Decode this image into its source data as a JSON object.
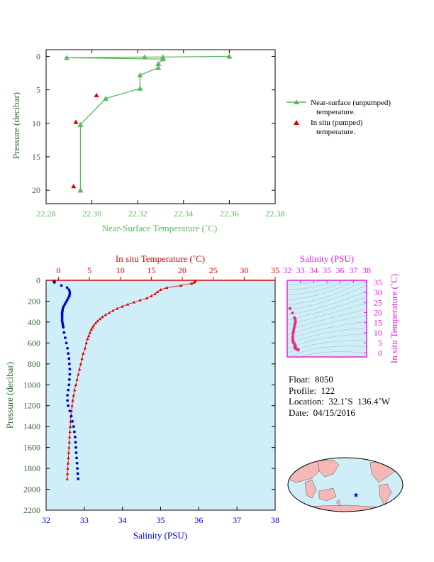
{
  "colors": {
    "green": "#5cb85c",
    "red": "#e00000",
    "blue": "#0000cc",
    "magenta": "#e020e0",
    "plot_bg": "#d0eef8",
    "land": "#f4b8b8",
    "ocean": "#d0eef8"
  },
  "chart_data": [
    {
      "type": "line",
      "title": "",
      "xlabel": "Near-Surface Temperature (˚C)",
      "ylabel": "Pressure (decibar)",
      "xlim": [
        22.28,
        22.38
      ],
      "ylim": [
        22,
        -1
      ],
      "x_ticks": [
        "22.28",
        "22.30",
        "22.32",
        "22.34",
        "22.36",
        "22.38"
      ],
      "y_ticks": [
        "0",
        "5",
        "10",
        "15",
        "20"
      ],
      "legend": {
        "position": "right",
        "entries": [
          "Near-surface (unpumped)",
          "temperature.",
          "In situ (pumped)",
          "temperature."
        ]
      },
      "series": [
        {
          "name": "Near-surface (unpumped) temperature.",
          "style": "line-triangle",
          "color": "#5cb85c",
          "x": [
            22.36,
            22.331,
            22.323,
            22.289,
            22.331,
            22.329,
            22.329,
            22.321,
            22.321,
            22.306,
            22.295,
            22.295
          ],
          "y": [
            0.0,
            0.1,
            0.1,
            0.2,
            0.4,
            1.1,
            1.7,
            2.8,
            4.8,
            6.3,
            10.2,
            20.0
          ]
        },
        {
          "name": "In situ (pumped) temperature.",
          "style": "triangle",
          "color": "#e00000",
          "x": [
            22.302,
            22.293,
            22.292
          ],
          "y": [
            5.8,
            9.8,
            19.4
          ]
        }
      ]
    },
    {
      "type": "line",
      "title": "",
      "ylabel": "Pressure (decibar)",
      "top_axis_label": "In situ Temperature (˚C)",
      "bottom_axis_label": "Salinity (PSU)",
      "temp_lim": [
        -2,
        35
      ],
      "sal_lim": [
        32,
        38
      ],
      "ylim": [
        2200,
        0
      ],
      "temp_ticks": [
        "0",
        "5",
        "10",
        "15",
        "20",
        "25",
        "30",
        "35"
      ],
      "sal_ticks": [
        "32",
        "33",
        "34",
        "35",
        "36",
        "37",
        "38"
      ],
      "y_ticks": [
        "0",
        "200",
        "400",
        "600",
        "800",
        "1000",
        "1200",
        "1400",
        "1600",
        "1800",
        "2000",
        "2200"
      ],
      "temperature": {
        "p": [
          5,
          10,
          20,
          30,
          50,
          70,
          90,
          110,
          130,
          150,
          170,
          190,
          210,
          230,
          250,
          270,
          290,
          310,
          330,
          350,
          370,
          390,
          410,
          430,
          450,
          470,
          500,
          530,
          560,
          600,
          650,
          700,
          750,
          800,
          850,
          900,
          950,
          1000,
          1050,
          1100,
          1150,
          1200,
          1250,
          1300,
          1350,
          1400,
          1450,
          1500,
          1550,
          1600,
          1650,
          1700,
          1750,
          1800,
          1850,
          1900
        ],
        "t": [
          22.1,
          22.0,
          21.9,
          21.5,
          19.8,
          17.5,
          16.5,
          16.0,
          15.6,
          15.0,
          14.3,
          13.2,
          12.2,
          11.2,
          10.3,
          9.5,
          8.8,
          8.2,
          7.6,
          7.1,
          6.7,
          6.3,
          6.0,
          5.7,
          5.5,
          5.3,
          5.1,
          4.9,
          4.7,
          4.5,
          4.3,
          4.0,
          3.8,
          3.6,
          3.4,
          3.2,
          3.0,
          2.8,
          2.6,
          2.45,
          2.3,
          2.2,
          2.1,
          2.0,
          1.95,
          1.9,
          1.85,
          1.8,
          1.75,
          1.7,
          1.65,
          1.6,
          1.55,
          1.5,
          1.45,
          1.4
        ]
      },
      "salinity": {
        "p": [
          5,
          10,
          20,
          50,
          70,
          90,
          110,
          130,
          150,
          170,
          190,
          210,
          230,
          250,
          270,
          290,
          310,
          330,
          350,
          370,
          390,
          410,
          430,
          450,
          500,
          550,
          600,
          650,
          700,
          750,
          800,
          850,
          900,
          950,
          1000,
          1050,
          1100,
          1150,
          1200,
          1250,
          1300,
          1350,
          1400,
          1450,
          1500,
          1550,
          1600,
          1650,
          1700,
          1750,
          1800,
          1850,
          1900
        ],
        "s": [
          32.22,
          32.2,
          32.22,
          32.4,
          32.55,
          32.6,
          32.62,
          32.62,
          32.61,
          32.58,
          32.55,
          32.52,
          32.49,
          32.46,
          32.44,
          32.43,
          32.42,
          32.42,
          32.42,
          32.42,
          32.42,
          32.43,
          32.44,
          32.45,
          32.47,
          32.5,
          32.53,
          32.56,
          32.58,
          32.6,
          32.61,
          32.62,
          32.62,
          32.61,
          32.6,
          32.58,
          32.56,
          32.56,
          32.58,
          32.62,
          32.66,
          32.69,
          32.72,
          32.74,
          32.76,
          32.77,
          32.78,
          32.79,
          32.8,
          32.81,
          32.82,
          32.83,
          32.84
        ]
      }
    },
    {
      "type": "scatter",
      "title": "",
      "top_axis_label": "Salinity (PSU)",
      "right_axis_label": "In situ Temperature (˚C)",
      "x_ticks": [
        "32",
        "33",
        "34",
        "35",
        "36",
        "37",
        "38"
      ],
      "y_ticks": [
        "0",
        "5",
        "10",
        "15",
        "20",
        "25",
        "30",
        "35"
      ],
      "xlim": [
        32,
        38
      ],
      "ylim": [
        -2,
        36
      ],
      "x": [
        32.22,
        32.2,
        32.4,
        32.55,
        32.6,
        32.62,
        32.61,
        32.58,
        32.55,
        32.52,
        32.49,
        32.46,
        32.44,
        32.42,
        32.42,
        32.42,
        32.43,
        32.45,
        32.47,
        32.5,
        32.53,
        32.56,
        32.58,
        32.6,
        32.62,
        32.62,
        32.61,
        32.6,
        32.58,
        32.56,
        32.58,
        32.62,
        32.66,
        32.7,
        32.74,
        32.77,
        32.79,
        32.81,
        32.83,
        32.84
      ],
      "y": [
        22.1,
        22.0,
        19.8,
        17.5,
        16.5,
        16.0,
        15.0,
        14.3,
        13.2,
        12.2,
        11.2,
        10.3,
        9.5,
        8.2,
        7.1,
        6.3,
        6.0,
        5.5,
        5.1,
        4.9,
        4.7,
        4.3,
        4.0,
        3.8,
        3.6,
        3.4,
        3.2,
        3.0,
        2.8,
        2.6,
        2.45,
        2.3,
        2.2,
        2.1,
        2.0,
        1.9,
        1.8,
        1.7,
        1.55,
        1.4
      ]
    }
  ],
  "info": {
    "float": "Float:  8050",
    "profile": "Profile:  122",
    "location": "Location:  32.1˚S  136.4˚W",
    "date": "Date:  04/15/2016"
  },
  "map": {
    "marker": "star",
    "lon": -136.4,
    "lat": -32.1
  }
}
